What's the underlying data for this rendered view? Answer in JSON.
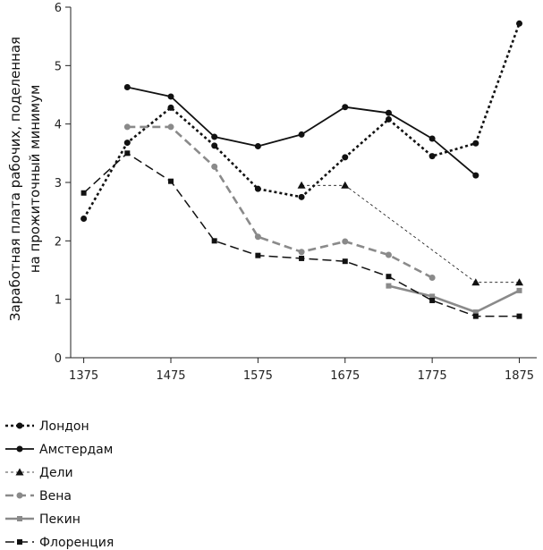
{
  "chart_data": {
    "type": "line",
    "title": "",
    "xlabel": "",
    "ylabel_lines": [
      "Заработная плата рабочих, поделенная",
      "на прожиточный минимум"
    ],
    "x_ticks": [
      1375,
      1475,
      1575,
      1675,
      1775,
      1875
    ],
    "y_ticks": [
      0,
      1,
      2,
      3,
      4,
      5,
      6
    ],
    "xlim": [
      1360,
      1895
    ],
    "ylim": [
      0,
      6
    ],
    "grid": false,
    "legend_position": "bottom-left",
    "series": [
      {
        "name": "Лондон",
        "style": "dotted-thick",
        "marker": "circle",
        "color": "#111111",
        "points": [
          [
            1375,
            2.38
          ],
          [
            1425,
            3.68
          ],
          [
            1475,
            4.28
          ],
          [
            1525,
            3.63
          ],
          [
            1575,
            2.89
          ],
          [
            1625,
            2.75
          ],
          [
            1675,
            3.43
          ],
          [
            1725,
            4.08
          ],
          [
            1775,
            3.45
          ],
          [
            1825,
            3.67
          ],
          [
            1875,
            5.72
          ]
        ]
      },
      {
        "name": "Амстердам",
        "style": "solid",
        "marker": "circle",
        "color": "#111111",
        "points": [
          [
            1425,
            4.63
          ],
          [
            1475,
            4.47
          ],
          [
            1525,
            3.78
          ],
          [
            1575,
            3.62
          ],
          [
            1625,
            3.82
          ],
          [
            1675,
            4.29
          ],
          [
            1725,
            4.19
          ],
          [
            1775,
            3.75
          ],
          [
            1825,
            3.12
          ]
        ]
      },
      {
        "name": "Дели",
        "style": "thin-dashed",
        "marker": "triangle",
        "color": "#111111",
        "points": [
          [
            1625,
            2.95
          ],
          [
            1675,
            2.95
          ],
          [
            1825,
            1.29
          ],
          [
            1875,
            1.29
          ]
        ]
      },
      {
        "name": "Вена",
        "style": "dashed-gray",
        "marker": "circle",
        "color": "#8a8a8a",
        "points": [
          [
            1425,
            3.95
          ],
          [
            1475,
            3.95
          ],
          [
            1525,
            3.27
          ],
          [
            1575,
            2.07
          ],
          [
            1625,
            1.81
          ],
          [
            1675,
            1.99
          ],
          [
            1725,
            1.76
          ],
          [
            1775,
            1.37
          ]
        ]
      },
      {
        "name": "Пекин",
        "style": "solid-gray",
        "marker": "square",
        "color": "#8a8a8a",
        "points": [
          [
            1725,
            1.23
          ],
          [
            1775,
            1.05
          ],
          [
            1825,
            0.78
          ],
          [
            1875,
            1.15
          ]
        ]
      },
      {
        "name": "Флоренция",
        "style": "long-dashed",
        "marker": "square",
        "color": "#111111",
        "points": [
          [
            1375,
            2.82
          ],
          [
            1425,
            3.5
          ],
          [
            1475,
            3.02
          ],
          [
            1525,
            2.0
          ],
          [
            1575,
            1.75
          ],
          [
            1625,
            1.7
          ],
          [
            1675,
            1.65
          ],
          [
            1725,
            1.39
          ],
          [
            1775,
            0.98
          ],
          [
            1825,
            0.71
          ],
          [
            1875,
            0.71
          ]
        ]
      }
    ]
  }
}
